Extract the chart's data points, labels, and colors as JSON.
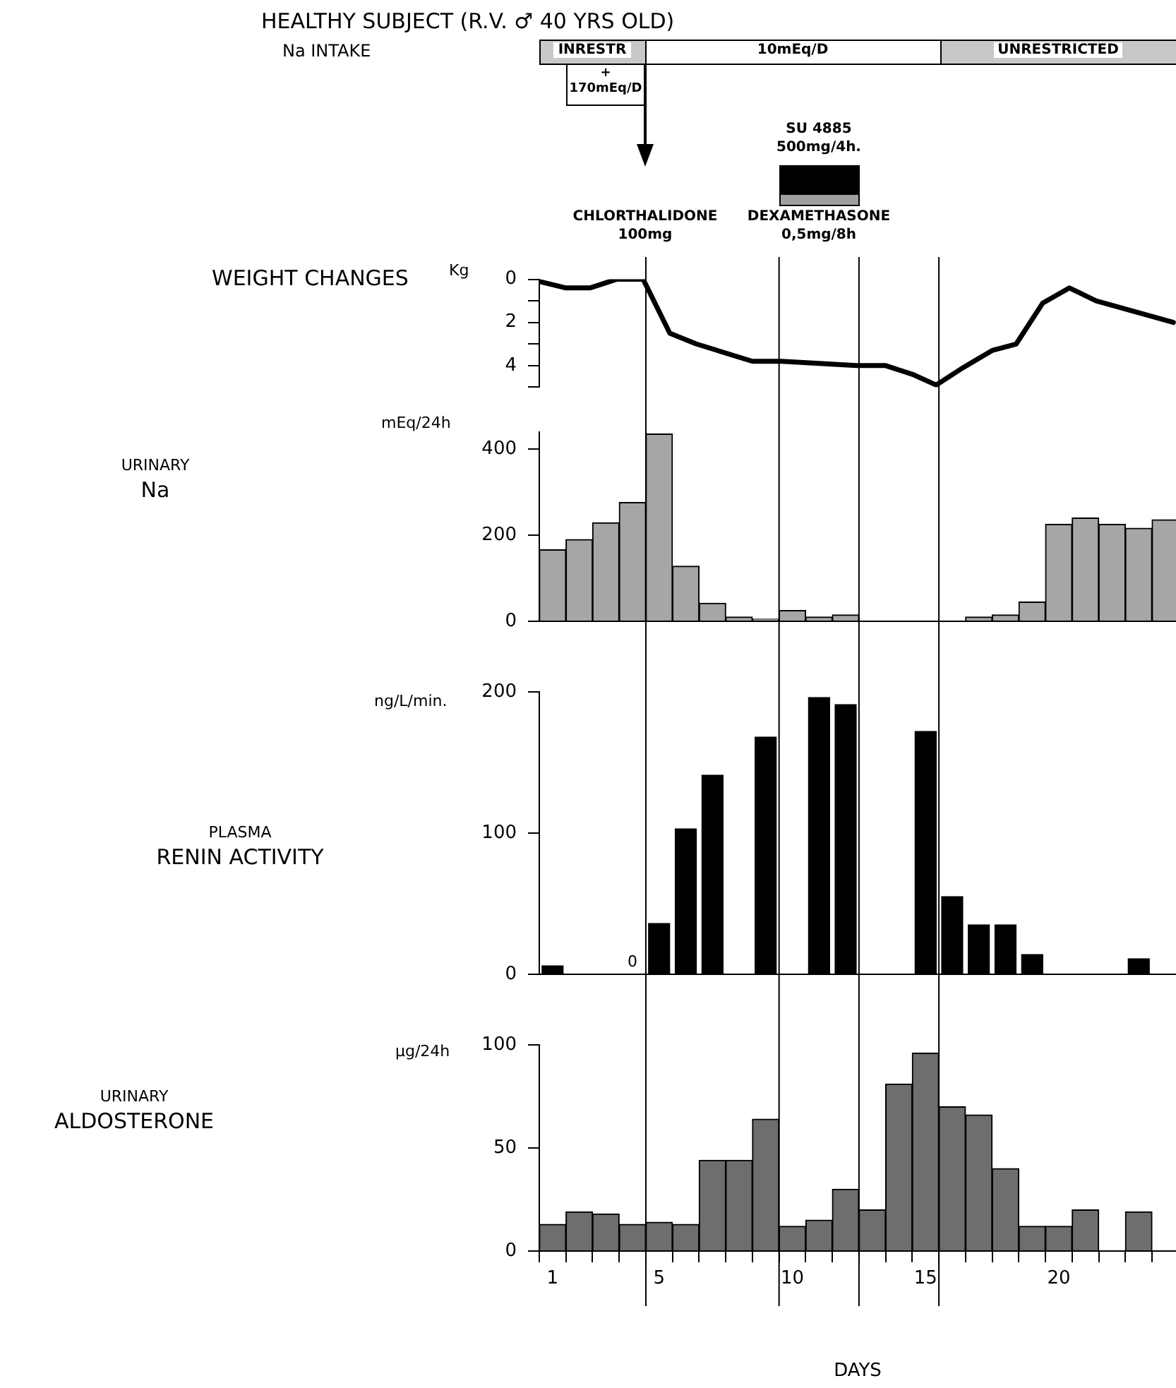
{
  "chart_data": [
    {
      "type": "other",
      "title": "HEALTHY SUBJECT (R.V. ♂ 40 YRS OLD)",
      "annotations": [
        "Na INTAKE",
        "INRESTR",
        "10mEq/D",
        "UNRESTRICTED",
        "+ 170mEq/D",
        "SU 4885 500mg/4h.",
        "DEXAMETHASONE 0,5mg/8h",
        "CHLORTHALIDONE 100mg"
      ]
    },
    {
      "type": "line",
      "ylabel": "WEIGHT CHANGES",
      "subtitle": "Kg",
      "x": [
        0.5,
        1.5,
        2.4,
        3.4,
        4.4,
        5.4,
        6.4,
        8.5,
        9.6,
        12.4,
        13.5,
        14.5,
        15.4,
        16.4,
        17.5,
        18.4,
        19.4,
        20.4,
        21.4,
        24.3
      ],
      "values": [
        0.1,
        0.4,
        0.4,
        0,
        0,
        2.5,
        3.0,
        3.8,
        3.8,
        4.0,
        4.0,
        4.4,
        4.9,
        4.1,
        3.3,
        3.0,
        1.1,
        0.4,
        1.0,
        2.0
      ],
      "color": "#000000",
      "marker": "none",
      "line_style": "solid",
      "xlim": [
        0.5,
        24.4
      ],
      "ylim": [
        5,
        0
      ],
      "yticks": [
        0,
        {
          "value": 1,
          "label": null
        },
        2,
        {
          "value": 3,
          "label": null
        },
        4,
        {
          "value": 5,
          "label": null
        }
      ],
      "tick_labels": "y",
      "grid": false,
      "ref_lines": [
        {
          "axis": "x",
          "value": 4.5,
          "color": "#000000"
        },
        {
          "axis": "x",
          "value": 9.5,
          "color": "#000000"
        },
        {
          "axis": "x",
          "value": 12.5,
          "color": "#000000"
        },
        {
          "axis": "x",
          "value": 15.5,
          "color": "#000000"
        }
      ]
    },
    {
      "type": "bar",
      "ylabel": "URINARY Na",
      "subtitle": "mEq/24h",
      "x": [
        1,
        2,
        3,
        4,
        5,
        6,
        7,
        8,
        9,
        10,
        11,
        12,
        13,
        14,
        15,
        16,
        17,
        18,
        19,
        20,
        21,
        22,
        23,
        24
      ],
      "values": [
        166,
        190,
        229,
        276,
        435,
        128,
        42,
        10,
        5,
        25,
        10,
        15,
        0,
        0,
        0,
        0,
        10,
        15,
        45,
        225,
        240,
        225,
        216,
        236
      ],
      "color": "#a6a6a6",
      "xlim": [
        0.5,
        24.4
      ],
      "ylim": [
        0,
        440
      ],
      "yticks": [
        0,
        200,
        400
      ],
      "tick_labels": "y",
      "grid": false,
      "ref_lines": [
        {
          "axis": "x",
          "value": 4.5,
          "color": "#000000"
        },
        {
          "axis": "x",
          "value": 9.5,
          "color": "#000000"
        },
        {
          "axis": "x",
          "value": 12.5,
          "color": "#000000"
        },
        {
          "axis": "x",
          "value": 15.5,
          "color": "#000000"
        }
      ]
    },
    {
      "type": "bar",
      "ylabel": "PLASMA RENIN ACTIVITY",
      "subtitle": "ng/L/min.",
      "x": [
        1,
        4,
        5,
        6,
        7,
        9,
        11,
        12,
        15,
        16,
        17,
        18,
        19,
        23
      ],
      "values": [
        6,
        0,
        36,
        103,
        141,
        168,
        196,
        191,
        172,
        55,
        35,
        35,
        14,
        11
      ],
      "value_labels": [
        null,
        "0",
        null,
        null,
        null,
        null,
        null,
        null,
        null,
        null,
        null,
        null,
        null,
        null
      ],
      "color": "#000000",
      "xlim": [
        0.5,
        24.4
      ],
      "ylim": [
        0,
        200
      ],
      "yticks": [
        0,
        100,
        200
      ],
      "tick_labels": "y",
      "grid": false,
      "ref_lines": [
        {
          "axis": "x",
          "value": 4.5,
          "color": "#000000"
        },
        {
          "axis": "x",
          "value": 9.5,
          "color": "#000000"
        },
        {
          "axis": "x",
          "value": 12.5,
          "color": "#000000"
        },
        {
          "axis": "x",
          "value": 15.5,
          "color": "#000000"
        }
      ]
    },
    {
      "type": "bar",
      "ylabel": "URINARY ALDOSTERONE",
      "subtitle": "µg/24h",
      "xlabel": "DAYS",
      "x": [
        1,
        2,
        3,
        4,
        5,
        6,
        7,
        8,
        9,
        10,
        11,
        12,
        13,
        14,
        15,
        16,
        17,
        18,
        19,
        20,
        21,
        22,
        23
      ],
      "values": [
        13,
        19,
        18,
        13,
        14,
        13,
        44,
        44,
        64,
        12,
        15,
        30,
        20,
        81,
        96,
        70,
        66,
        40,
        12,
        12,
        20,
        null,
        19
      ],
      "color": "#6e6e6e",
      "xlim": [
        0.5,
        24.4
      ],
      "ylim": [
        0,
        100
      ],
      "yticks": [
        0,
        50,
        100
      ],
      "grid": false,
      "xticks": [
        {
          "value": 0.5,
          "label": null
        },
        1,
        {
          "value": 1.5,
          "label": null
        },
        {
          "value": 2.5,
          "label": null
        },
        {
          "value": 3.5,
          "label": null
        },
        {
          "value": 4.5,
          "label": null
        },
        5,
        {
          "value": 5.5,
          "label": null
        },
        {
          "value": 6.5,
          "label": null
        },
        {
          "value": 7.5,
          "label": null
        },
        {
          "value": 8.5,
          "label": null
        },
        {
          "value": 9.5,
          "label": null
        },
        10,
        {
          "value": 10.5,
          "label": null
        },
        {
          "value": 11.5,
          "label": null
        },
        {
          "value": 12.5,
          "label": null
        },
        {
          "value": 13.5,
          "label": null
        },
        {
          "value": 14.5,
          "label": null
        },
        15,
        {
          "value": 15.5,
          "label": null
        },
        {
          "value": 16.5,
          "label": null
        },
        {
          "value": 17.5,
          "label": null
        },
        {
          "value": 18.5,
          "label": null
        },
        {
          "value": 19.5,
          "label": null
        },
        20,
        {
          "value": 20.5,
          "label": null
        },
        {
          "value": 21.5,
          "label": null
        },
        {
          "value": 22.5,
          "label": null
        },
        {
          "value": 23.5,
          "label": null
        }
      ],
      "ref_lines": [
        {
          "axis": "x",
          "value": 4.5,
          "color": "#000000"
        },
        {
          "axis": "x",
          "value": 9.5,
          "color": "#000000"
        },
        {
          "axis": "x",
          "value": 12.5,
          "color": "#000000"
        },
        {
          "axis": "x",
          "value": 15.5,
          "color": "#000000"
        }
      ]
    }
  ]
}
